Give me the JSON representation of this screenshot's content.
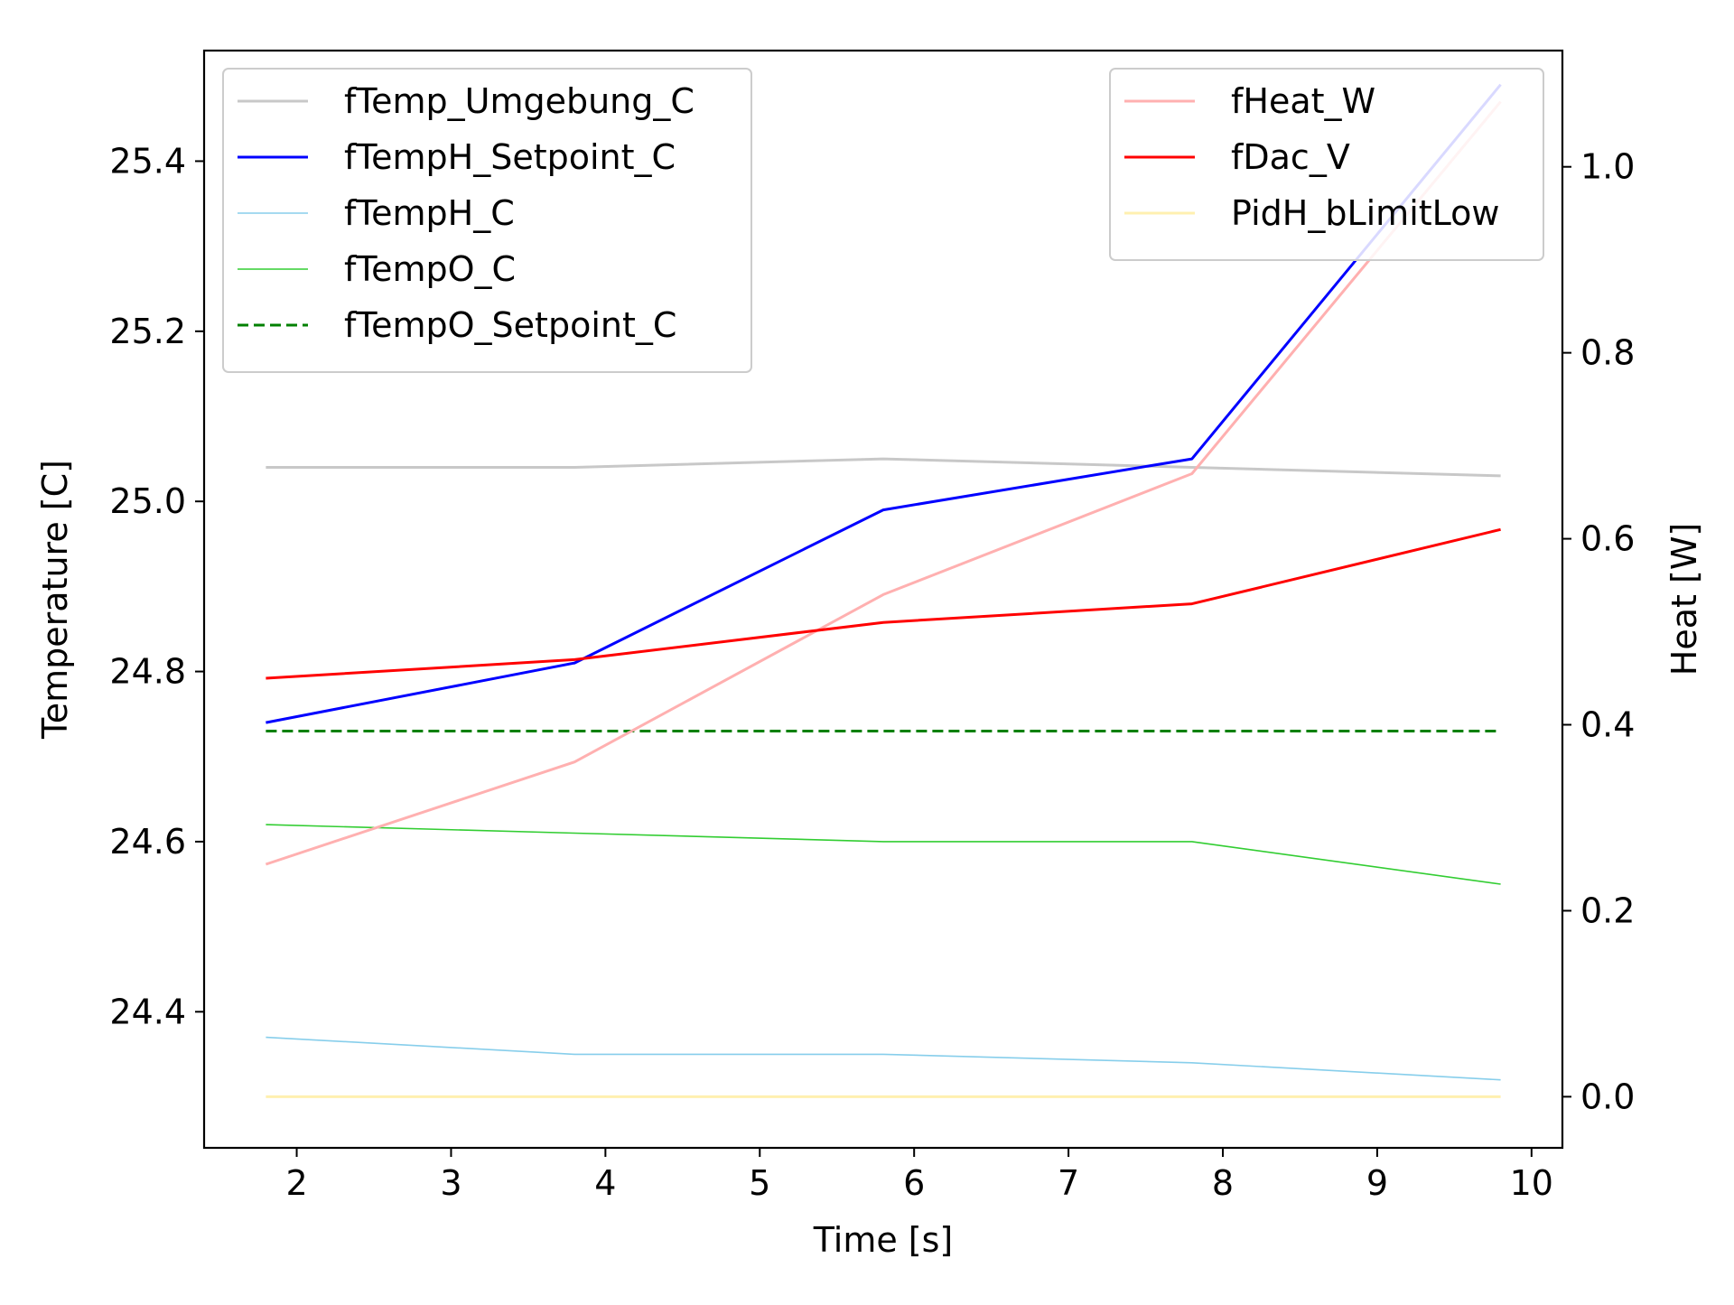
{
  "chart_data": {
    "type": "line",
    "xlabel": "Time [s]",
    "ylabel": "Temperature [C]",
    "y2label": "Heat [W]",
    "xlim": [
      1.4,
      10.2
    ],
    "ylim": [
      24.24,
      25.53
    ],
    "y2lim": [
      -0.055,
      1.125
    ],
    "x_ticks": [
      2,
      3,
      4,
      5,
      6,
      7,
      8,
      9,
      10
    ],
    "x_tick_labels": [
      "2",
      "3",
      "4",
      "5",
      "6",
      "7",
      "8",
      "9",
      "10"
    ],
    "y_ticks": [
      24.4,
      24.6,
      24.8,
      25.0,
      25.2,
      25.4
    ],
    "y_tick_labels": [
      "24.4",
      "24.6",
      "24.8",
      "25.0",
      "25.2",
      "25.4"
    ],
    "y2_ticks": [
      0.0,
      0.2,
      0.4,
      0.6,
      0.8,
      1.0
    ],
    "y2_tick_labels": [
      "0.0",
      "0.2",
      "0.4",
      "0.6",
      "0.8",
      "1.0"
    ],
    "grid": false,
    "legend_left_placement": "upper-left",
    "legend_right_placement": "upper-right",
    "x": [
      1.8,
      3.8,
      5.8,
      7.8,
      9.8
    ],
    "series": [
      {
        "name": "fTemp_Umgebung_C",
        "axis": "left",
        "color": "#c8c8c8",
        "style": "solid",
        "width": "medium",
        "values": [
          25.04,
          25.04,
          25.05,
          25.04,
          25.03
        ]
      },
      {
        "name": "fTempH_Setpoint_C",
        "axis": "left",
        "color": "#0000ff",
        "style": "solid",
        "width": "medium",
        "values": [
          24.74,
          24.81,
          24.99,
          25.05,
          25.49
        ]
      },
      {
        "name": "fTempH_C",
        "axis": "left",
        "color": "#87ceeb",
        "style": "solid",
        "width": "thin",
        "values": [
          24.37,
          24.35,
          24.35,
          24.34,
          24.32
        ]
      },
      {
        "name": "fTempO_C",
        "axis": "left",
        "color": "#32cd32",
        "style": "solid",
        "width": "thin",
        "values": [
          24.62,
          24.61,
          24.6,
          24.6,
          24.55
        ]
      },
      {
        "name": "fTempO_Setpoint_C",
        "axis": "left",
        "color": "#008000",
        "style": "dashed",
        "width": "medium",
        "values": [
          24.73,
          24.73,
          24.73,
          24.73,
          24.73
        ]
      },
      {
        "name": "fHeat_W",
        "axis": "right",
        "color": "#ffb0b0",
        "style": "solid",
        "width": "medium",
        "values": [
          0.25,
          0.36,
          0.54,
          0.67,
          1.07
        ]
      },
      {
        "name": "fDac_V",
        "axis": "right",
        "color": "#ff0000",
        "style": "solid",
        "width": "medium",
        "values": [
          0.45,
          0.47,
          0.51,
          0.53,
          0.61
        ]
      },
      {
        "name": "PidH_bLimitLow",
        "axis": "right",
        "color": "#fff0b0",
        "style": "solid",
        "width": "medium",
        "values": [
          0.0,
          0.0,
          0.0,
          0.0,
          0.0
        ]
      }
    ]
  }
}
